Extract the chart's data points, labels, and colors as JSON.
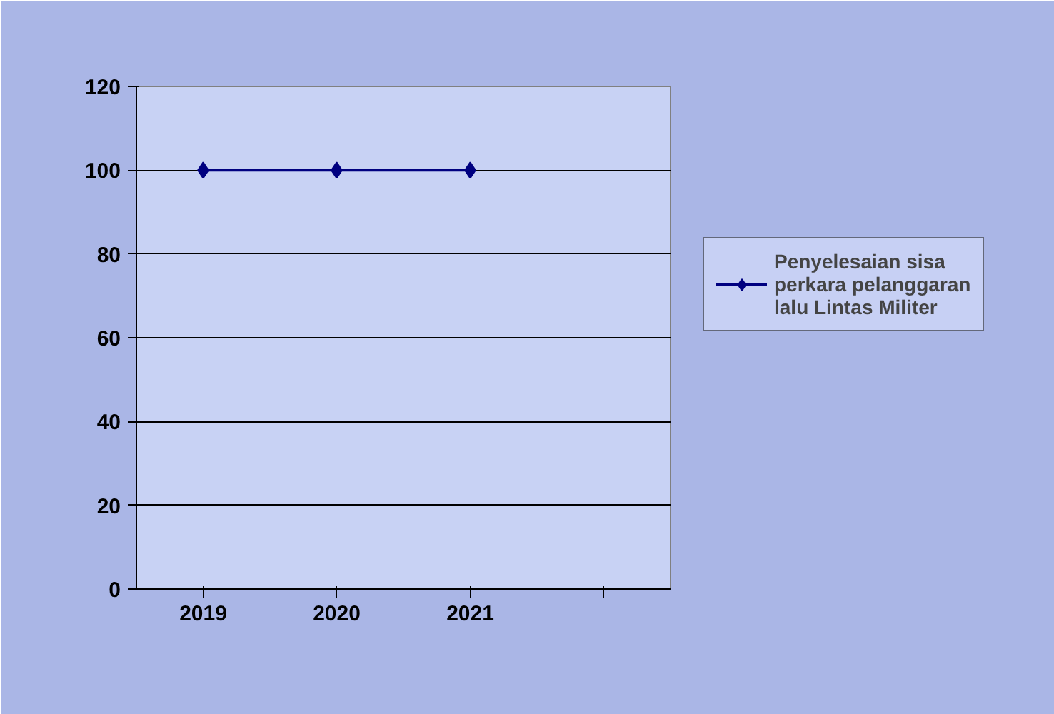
{
  "chart_data": {
    "type": "line",
    "categories": [
      "2019",
      "2020",
      "2021",
      null
    ],
    "series": [
      {
        "name": "Penyelesaian sisa perkara pelanggaran lalu Lintas Militer",
        "color": "#000080",
        "values": [
          100,
          100,
          100,
          null
        ]
      }
    ],
    "ylim": [
      0,
      120
    ],
    "yticks": [
      0,
      20,
      40,
      60,
      80,
      100,
      120
    ],
    "grid": "y",
    "legend": "right",
    "marker": "diamond",
    "line_style": "solid"
  }
}
